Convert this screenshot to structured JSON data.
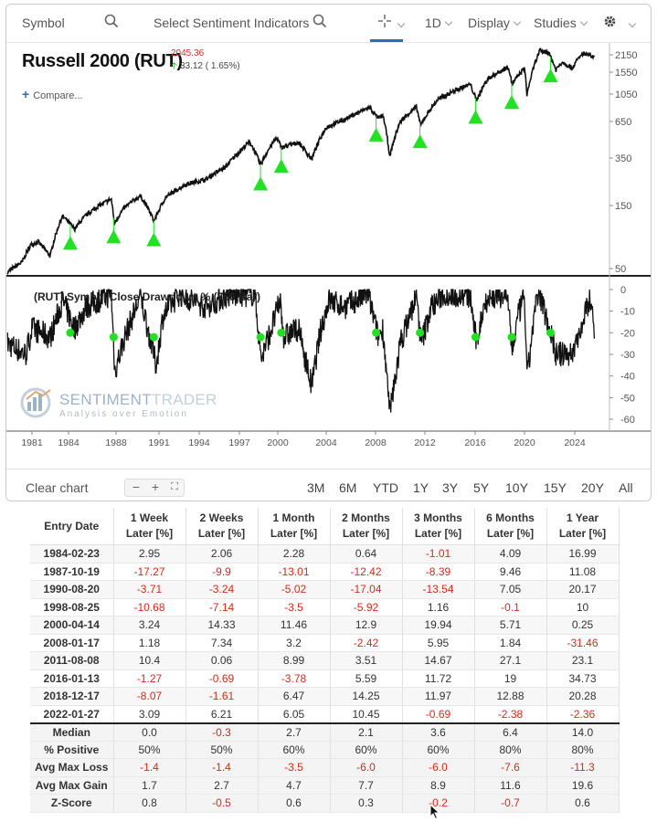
{
  "toolbar": {
    "symbol_placeholder": "Symbol",
    "indicators_placeholder": "Select Sentiment Indicators",
    "interval": "1D",
    "display": "Display",
    "studies": "Studies"
  },
  "header": {
    "title": "Russell 2000 (RUT)",
    "last_price": "2045.36",
    "change": "33.12 ( 1.65%)",
    "compare": "Compare..."
  },
  "price_axis": {
    "scale": "log",
    "ticks": [
      "2150",
      "1550",
      "1050",
      "650",
      "350",
      "150",
      "50"
    ]
  },
  "drawdown_label": "(RUT) Symbol Close Drawdown % (756 Bar)",
  "drawdown_axis": {
    "ticks": [
      "0",
      "-10",
      "-20",
      "-30",
      "-40",
      "-50",
      "-60"
    ]
  },
  "x_axis": {
    "ticks": [
      "1981",
      "1984",
      "1988",
      "1991",
      "1994",
      "1997",
      "2000",
      "2004",
      "2008",
      "2012",
      "2016",
      "2020",
      "2024"
    ]
  },
  "watermark": {
    "name_a": "SENTIMENT",
    "name_b": "TRADER",
    "tagline": "Analysis over Emotion"
  },
  "bottom_bar": {
    "clear_chart": "Clear chart",
    "ranges": [
      "3M",
      "6M",
      "YTD",
      "1Y",
      "3Y",
      "5Y",
      "10Y",
      "15Y",
      "20Y",
      "All"
    ]
  },
  "colors": {
    "signal": "#22e022",
    "negative": "#d52a1a",
    "accent": "#2a6fbd"
  },
  "chart_data": {
    "type": "line",
    "title": "Russell 2000 (RUT)",
    "series": [
      {
        "name": "Russell 2000 (RUT)",
        "values": []
      },
      {
        "name": "(RUT) Symbol Close Drawdown % (756 Bar)",
        "values": []
      }
    ],
    "signals": [
      "1984-02-23",
      "1987-10-19",
      "1990-08-20",
      "1998-08-25",
      "2000-04-14",
      "2008-01-17",
      "2011-08-08",
      "2016-01-13",
      "2018-12-17",
      "2022-01-27"
    ],
    "price_ylim": [
      50,
      2150
    ],
    "drawdown_ylim": [
      -60,
      0
    ]
  },
  "table": {
    "headers": [
      "Entry Date",
      "1 Week Later [%]",
      "2 Weeks Later [%]",
      "1 Month Later [%]",
      "2 Months Later [%]",
      "3 Months Later [%]",
      "6 Months Later [%]",
      "1 Year Later [%]"
    ],
    "rows": [
      [
        "1984-02-23",
        "2.95",
        "2.06",
        "2.28",
        "0.64",
        "-1.01",
        "4.09",
        "16.99"
      ],
      [
        "1987-10-19",
        "-17.27",
        "-9.9",
        "-13.01",
        "-12.42",
        "-8.39",
        "9.46",
        "11.08"
      ],
      [
        "1990-08-20",
        "-3.71",
        "-3.24",
        "-5.02",
        "-17.04",
        "-13.54",
        "7.05",
        "20.17"
      ],
      [
        "1998-08-25",
        "-10.68",
        "-7.14",
        "-3.5",
        "-5.92",
        "1.16",
        "-0.1",
        "10"
      ],
      [
        "2000-04-14",
        "3.24",
        "14.33",
        "11.46",
        "12.9",
        "19.94",
        "5.71",
        "0.25"
      ],
      [
        "2008-01-17",
        "1.18",
        "7.34",
        "3.2",
        "-2.42",
        "5.95",
        "1.84",
        "-31.46"
      ],
      [
        "2011-08-08",
        "10.4",
        "0.06",
        "8.99",
        "3.51",
        "14.67",
        "27.1",
        "23.1"
      ],
      [
        "2016-01-13",
        "-1.27",
        "-0.69",
        "-3.78",
        "5.59",
        "11.72",
        "19",
        "34.73"
      ],
      [
        "2018-12-17",
        "-8.07",
        "-1.61",
        "6.47",
        "14.25",
        "11.97",
        "12.88",
        "20.28"
      ],
      [
        "2022-01-27",
        "3.09",
        "6.21",
        "6.05",
        "10.45",
        "-0.69",
        "-2.38",
        "-2.36"
      ]
    ],
    "stats": [
      [
        "Median",
        "0.0",
        "-0.3",
        "2.7",
        "2.1",
        "3.6",
        "6.4",
        "14.0"
      ],
      [
        "% Positive",
        "50%",
        "50%",
        "60%",
        "60%",
        "60%",
        "80%",
        "80%"
      ],
      [
        "Avg Max Loss",
        "-1.4",
        "-1.4",
        "-3.5",
        "-6.0",
        "-6.0",
        "-7.6",
        "-11.3"
      ],
      [
        "Avg Max Gain",
        "1.7",
        "2.7",
        "4.7",
        "7.7",
        "8.9",
        "11.6",
        "19.6"
      ],
      [
        "Z-Score",
        "0.8",
        "-0.5",
        "0.6",
        "0.3",
        "-0.2",
        "-0.7",
        "0.6"
      ]
    ]
  }
}
